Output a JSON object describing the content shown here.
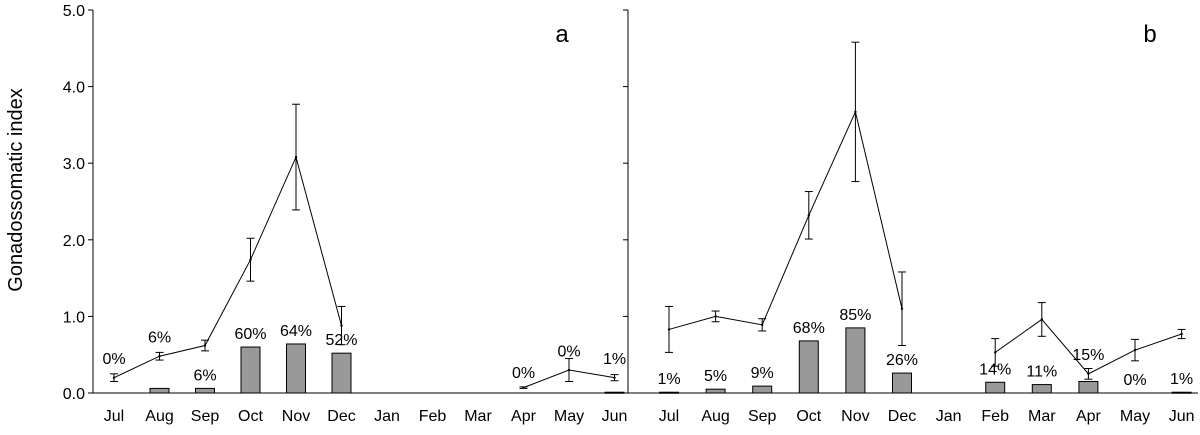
{
  "chart_data": {
    "type": "bar+line",
    "ylabel": "Gonadossomatic index",
    "ylim": [
      0,
      5
    ],
    "yticks": [
      "0.0",
      "1.0",
      "2.0",
      "3.0",
      "4.0",
      "5.0"
    ],
    "categories": [
      "Jul",
      "Aug",
      "Sep",
      "Oct",
      "Nov",
      "Dec",
      "Jan",
      "Feb",
      "Mar",
      "Apr",
      "May",
      "Jun"
    ],
    "panels": [
      {
        "letter": "a",
        "bars": [
          0,
          0.06,
          0.06,
          0.6,
          0.64,
          0.52,
          null,
          null,
          null,
          0,
          0,
          0.01
        ],
        "bar_labels": [
          "0%",
          "6%",
          "6%",
          "60%",
          "64%",
          "52%",
          "",
          "",
          "",
          "0%",
          "0%",
          "1%"
        ],
        "line_segments": [
          [
            {
              "x": "Jul",
              "mean": 0.2,
              "err": 0.05
            },
            {
              "x": "Aug",
              "mean": 0.48,
              "err": 0.05
            },
            {
              "x": "Sep",
              "mean": 0.62,
              "err": 0.07
            },
            {
              "x": "Oct",
              "mean": 1.74,
              "err": 0.28
            },
            {
              "x": "Nov",
              "mean": 3.08,
              "err": 0.69
            },
            {
              "x": "Dec",
              "mean": 0.88,
              "err": 0.25
            }
          ],
          [
            {
              "x": "Apr",
              "mean": 0.07,
              "err": 0.01
            },
            {
              "x": "May",
              "mean": 0.3,
              "err": 0.15
            },
            {
              "x": "Jun",
              "mean": 0.2,
              "err": 0.04
            }
          ]
        ]
      },
      {
        "letter": "b",
        "bars": [
          0.01,
          0.05,
          0.09,
          0.68,
          0.85,
          0.26,
          null,
          0.14,
          0.11,
          0.15,
          0,
          0.01
        ],
        "bar_labels": [
          "1%",
          "5%",
          "9%",
          "68%",
          "85%",
          "26%",
          "",
          "14%",
          "11%",
          "15%",
          "0%",
          "1%"
        ],
        "line_segments": [
          [
            {
              "x": "Jul",
              "mean": 0.83,
              "err": 0.3
            },
            {
              "x": "Aug",
              "mean": 1.0,
              "err": 0.07
            },
            {
              "x": "Sep",
              "mean": 0.89,
              "err": 0.08
            },
            {
              "x": "Oct",
              "mean": 2.32,
              "err": 0.31
            },
            {
              "x": "Nov",
              "mean": 3.67,
              "err": 0.91
            },
            {
              "x": "Dec",
              "mean": 1.1,
              "err": 0.48
            }
          ],
          [
            {
              "x": "Feb",
              "mean": 0.53,
              "err": 0.18
            },
            {
              "x": "Mar",
              "mean": 0.96,
              "err": 0.22
            },
            {
              "x": "Apr",
              "mean": 0.25,
              "err": 0.07
            },
            {
              "x": "May",
              "mean": 0.56,
              "err": 0.14
            },
            {
              "x": "Jun",
              "mean": 0.77,
              "err": 0.06
            }
          ]
        ]
      }
    ],
    "colors": {
      "bar_fill": "#999999",
      "bar_stroke": "#000000",
      "line": "#000000",
      "axis": "#000000"
    }
  }
}
